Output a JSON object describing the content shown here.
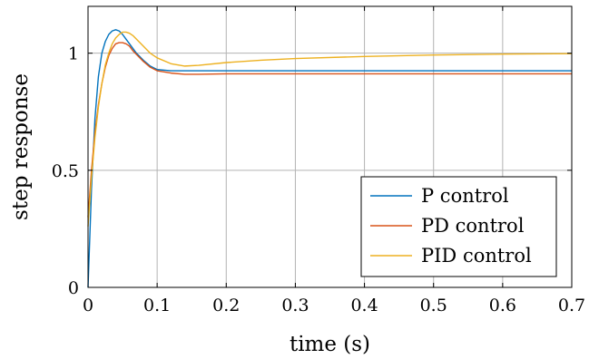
{
  "chart_data": {
    "type": "line",
    "xlabel": "time (s)",
    "ylabel": "step response",
    "xlim": [
      0,
      0.7
    ],
    "ylim": [
      0,
      1.2
    ],
    "x_ticks": [
      0,
      0.1,
      0.2,
      0.3,
      0.4,
      0.5,
      0.6,
      0.7
    ],
    "x_tick_labels": [
      "0",
      "0.1",
      "0.2",
      "0.3",
      "0.4",
      "0.5",
      "0.6",
      "0.7"
    ],
    "y_ticks": [
      0,
      0.5,
      1
    ],
    "y_tick_labels": [
      "0",
      "0.5",
      "1"
    ],
    "grid": true,
    "legend_position": "bottom-right",
    "series": [
      {
        "name": "P control",
        "color": "#0072BD",
        "x": [
          0,
          0.005,
          0.01,
          0.015,
          0.02,
          0.025,
          0.03,
          0.035,
          0.04,
          0.045,
          0.05,
          0.055,
          0.06,
          0.07,
          0.08,
          0.09,
          0.1,
          0.12,
          0.15,
          0.2,
          0.3,
          0.4,
          0.5,
          0.6,
          0.7
        ],
        "y": [
          0,
          0.42,
          0.72,
          0.9,
          1.0,
          1.05,
          1.08,
          1.095,
          1.1,
          1.095,
          1.08,
          1.06,
          1.04,
          1.0,
          0.97,
          0.945,
          0.93,
          0.925,
          0.925,
          0.925,
          0.925,
          0.925,
          0.925,
          0.925,
          0.925
        ]
      },
      {
        "name": "PD control",
        "color": "#D95319",
        "x": [
          0,
          0.005,
          0.01,
          0.015,
          0.02,
          0.025,
          0.03,
          0.035,
          0.04,
          0.045,
          0.05,
          0.055,
          0.06,
          0.065,
          0.07,
          0.08,
          0.09,
          0.1,
          0.12,
          0.14,
          0.16,
          0.2,
          0.3,
          0.4,
          0.5,
          0.6,
          0.7
        ],
        "y": [
          0.3,
          0.5,
          0.66,
          0.78,
          0.87,
          0.94,
          0.99,
          1.02,
          1.04,
          1.045,
          1.045,
          1.04,
          1.03,
          1.01,
          0.995,
          0.965,
          0.94,
          0.925,
          0.915,
          0.91,
          0.91,
          0.912,
          0.912,
          0.912,
          0.912,
          0.912,
          0.912
        ]
      },
      {
        "name": "PID control",
        "color": "#EDB120",
        "x": [
          0,
          0.005,
          0.01,
          0.015,
          0.02,
          0.025,
          0.03,
          0.035,
          0.04,
          0.045,
          0.05,
          0.055,
          0.06,
          0.065,
          0.07,
          0.08,
          0.09,
          0.1,
          0.12,
          0.14,
          0.16,
          0.2,
          0.25,
          0.3,
          0.4,
          0.5,
          0.6,
          0.7
        ],
        "y": [
          0.26,
          0.47,
          0.64,
          0.77,
          0.87,
          0.95,
          1.0,
          1.04,
          1.065,
          1.08,
          1.09,
          1.09,
          1.085,
          1.075,
          1.06,
          1.03,
          1.0,
          0.98,
          0.955,
          0.945,
          0.948,
          0.96,
          0.97,
          0.977,
          0.986,
          0.992,
          0.996,
          0.998
        ]
      }
    ]
  }
}
